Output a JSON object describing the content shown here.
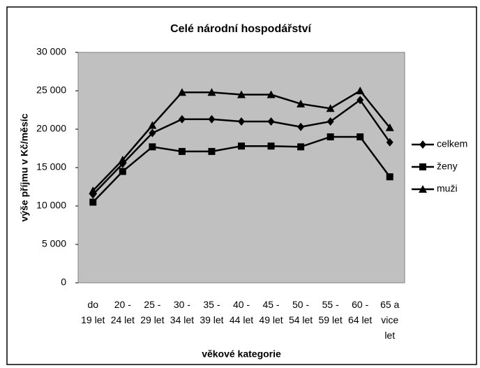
{
  "chart_data": {
    "type": "line",
    "title": "Celé národní hospodářství",
    "ylabel": "výše příjmu v Kč/měsíc",
    "xlabel": "věkové kategorie",
    "categories": [
      "do\n19 let",
      "20 -\n24 let",
      "25 -\n29 let",
      "30 -\n34 let",
      "35 -\n39 let",
      "40 -\n44 let",
      "45 -\n49 let",
      "50 -\n54 let",
      "55 -\n59 let",
      "60 -\n64 let",
      "65 a\nvice\nlet"
    ],
    "series": [
      {
        "name": "celkem",
        "color": "#000000",
        "marker": "diamond",
        "values": [
          11500,
          15500,
          19500,
          21300,
          21300,
          21000,
          21000,
          20300,
          21000,
          23800,
          18300
        ]
      },
      {
        "name": "ženy",
        "color": "#000000",
        "marker": "square",
        "values": [
          10500,
          14500,
          17700,
          17100,
          17100,
          17800,
          17800,
          17700,
          19000,
          19000,
          13800
        ]
      },
      {
        "name": "muži",
        "color": "#000000",
        "marker": "triangle",
        "values": [
          12000,
          16000,
          20500,
          24800,
          24800,
          24500,
          24500,
          23300,
          22700,
          25000,
          20200
        ]
      }
    ],
    "ylim": [
      0,
      30000
    ],
    "yticks": [
      0,
      {
        "value": 5000,
        "label": "5 000"
      },
      {
        "value": 10000,
        "label": "10 000"
      },
      {
        "value": 15000,
        "label": "15 000"
      },
      {
        "value": 20000,
        "label": "20 000"
      },
      {
        "value": 25000,
        "label": "25 000"
      },
      {
        "value": 30000,
        "label": "30 000"
      }
    ],
    "plot_background": "#c0c0c0",
    "legend": "right"
  }
}
